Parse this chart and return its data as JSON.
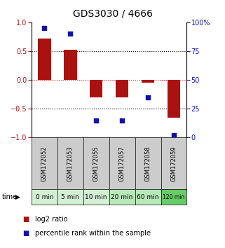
{
  "title": "GDS3030 / 4666",
  "samples": [
    "GSM172052",
    "GSM172053",
    "GSM172055",
    "GSM172057",
    "GSM172058",
    "GSM172059"
  ],
  "time_labels": [
    "0 min",
    "5 min",
    "10 min",
    "20 min",
    "60 min",
    "120 min"
  ],
  "time_colors": [
    "#d4f0d4",
    "#d4f0d4",
    "#d4f0d4",
    "#b8e8b8",
    "#b8e8b8",
    "#66cc66"
  ],
  "log2_ratio": [
    0.72,
    0.52,
    -0.3,
    -0.3,
    -0.05,
    -0.65
  ],
  "percentile_rank": [
    95,
    90,
    15,
    15,
    35,
    2
  ],
  "bar_color": "#aa1111",
  "dot_color": "#1111aa",
  "ylim_left": [
    -1,
    1
  ],
  "ylim_right": [
    0,
    100
  ],
  "yticks_left": [
    -1,
    -0.5,
    0,
    0.5,
    1
  ],
  "yticks_right": [
    0,
    25,
    50,
    75,
    100
  ],
  "bg_color": "#ffffff",
  "gray_box_color": "#cccccc",
  "title_fontsize": 10,
  "tick_fontsize": 7,
  "legend_fontsize": 7,
  "bar_width": 0.5
}
